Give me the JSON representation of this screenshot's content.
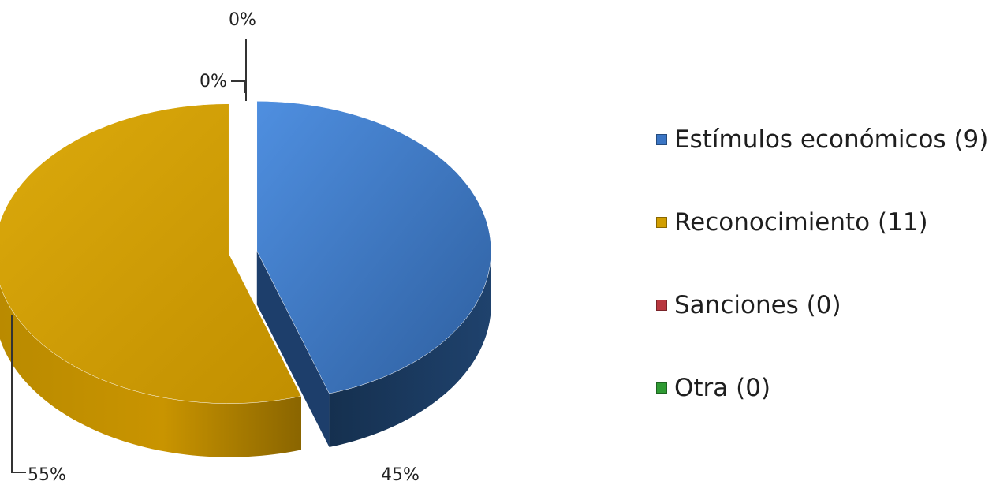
{
  "chart_data": {
    "type": "pie",
    "variant": "3d-exploded",
    "categories": [
      "Estímulos económicos",
      "Reconocimiento",
      "Sanciones",
      "Otra"
    ],
    "values": [
      9,
      11,
      0,
      0
    ],
    "percent_labels": [
      "45%",
      "55%",
      "0%",
      "0%"
    ],
    "colors": [
      "#3a75c4",
      "#d19e00",
      "#b8373f",
      "#2f9a33"
    ],
    "side_colors": [
      "#1d3e6b",
      "#9c7500",
      "#7e2026",
      "#1c6a1f"
    ],
    "legend": {
      "placement": "right",
      "entries": [
        "Estímulos económicos (9)",
        "Reconocimiento (11)",
        "Sanciones (0)",
        "Otra (0)"
      ]
    }
  }
}
